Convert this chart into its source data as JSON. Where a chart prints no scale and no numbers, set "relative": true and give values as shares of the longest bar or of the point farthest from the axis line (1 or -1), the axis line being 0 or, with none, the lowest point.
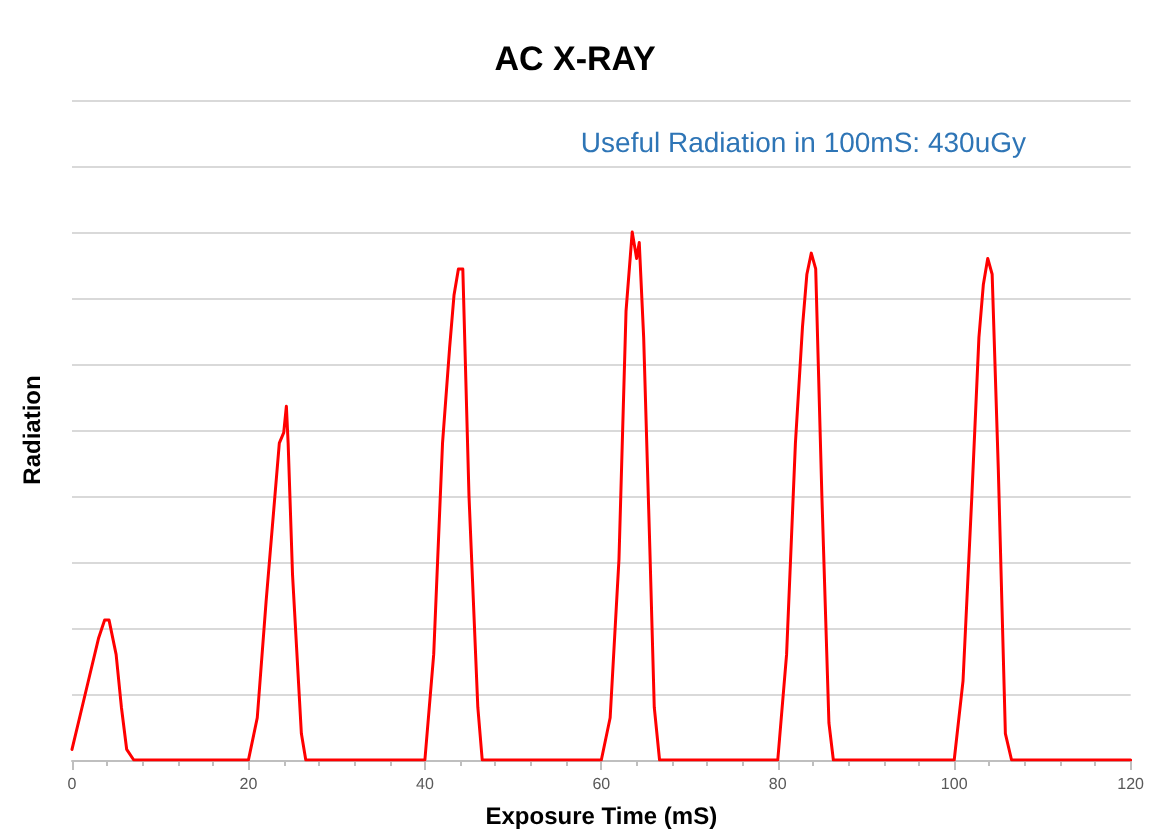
{
  "chart_data": {
    "type": "line",
    "title": "AC X-RAY",
    "xlabel": "Exposure Time (mS)",
    "ylabel": "Radiation",
    "annotations": [
      "Useful Radiation in 100mS: 430uGy"
    ],
    "relative": true,
    "xlim": [
      0,
      120
    ],
    "xticks": [
      0,
      20,
      40,
      60,
      80,
      100,
      120
    ],
    "grid": "y",
    "marker": "none",
    "line_style": "solid",
    "series": [
      {
        "color": "#ff0000",
        "x": [
          0,
          1,
          2,
          3,
          3.7,
          4.2,
          5,
          5.6,
          6.2,
          7,
          20,
          21,
          22,
          23,
          23.5,
          24,
          24.3,
          24.5,
          25,
          26,
          26.5,
          40,
          41,
          42,
          42.8,
          43.3,
          43.8,
          44.3,
          45,
          46,
          46.5,
          60,
          61,
          62,
          62.8,
          63.5,
          64,
          64.3,
          64.8,
          65.5,
          66,
          66.6,
          80,
          81,
          82,
          82.8,
          83.3,
          83.8,
          84.3,
          85,
          85.8,
          86.3,
          100,
          101,
          102,
          102.8,
          103.3,
          103.8,
          104.3,
          105,
          105.8,
          106.5,
          120
        ],
        "values": [
          0.02,
          0.09,
          0.16,
          0.23,
          0.265,
          0.265,
          0.2,
          0.1,
          0.02,
          0,
          0,
          0.08,
          0.3,
          0.5,
          0.6,
          0.62,
          0.67,
          0.6,
          0.35,
          0.05,
          0,
          0,
          0.2,
          0.6,
          0.78,
          0.88,
          0.93,
          0.93,
          0.5,
          0.1,
          0,
          0,
          0.08,
          0.38,
          0.85,
          1.0,
          0.95,
          0.98,
          0.8,
          0.4,
          0.1,
          0,
          0,
          0.2,
          0.6,
          0.82,
          0.92,
          0.96,
          0.93,
          0.5,
          0.07,
          0,
          0,
          0.15,
          0.5,
          0.8,
          0.9,
          0.95,
          0.92,
          0.55,
          0.05,
          0,
          0
        ]
      }
    ]
  }
}
